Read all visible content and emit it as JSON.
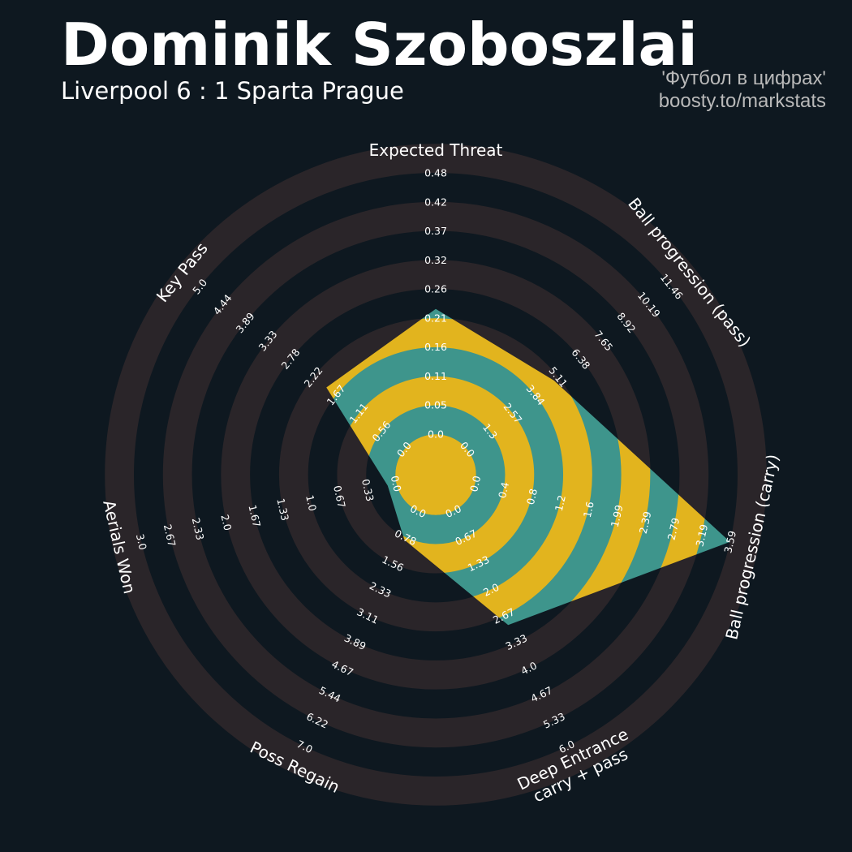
{
  "header": {
    "title": "Dominik Szoboszlai",
    "subtitle": "Liverpool 6 : 1 Sparta Prague",
    "credit_line1": "'Футбол в цифрах'",
    "credit_line2": "boosty.to/markstats"
  },
  "colors": {
    "background": "#0e1820",
    "ring_band": "#2a2529",
    "shape_yellow": "#e2b41e",
    "shape_teal": "#3e958c"
  },
  "chart_data": {
    "type": "radar",
    "params": [
      {
        "label": "Expected Threat",
        "label_lines": [
          "Expected Threat"
        ],
        "min": 0.0,
        "max": 0.48,
        "ticks": [
          "0.0",
          "0.05",
          "0.11",
          "0.16",
          "0.21",
          "0.26",
          "0.32",
          "0.37",
          "0.42",
          "0.48"
        ],
        "value": 0.23
      },
      {
        "label": "Ball progression (pass)",
        "label_lines": [
          "Ball progression (pass)"
        ],
        "min": 0.0,
        "max": 11.46,
        "ticks": [
          "0.0",
          "1.3",
          "2.57",
          "3.84",
          "5.11",
          "6.38",
          "7.65",
          "8.92",
          "10.19",
          "11.46"
        ],
        "value": 4.85
      },
      {
        "label": "Ball progression (carry)",
        "label_lines": [
          "Ball progression (carry)"
        ],
        "min": 0.0,
        "max": 3.59,
        "ticks": [
          "0.0",
          "0.4",
          "0.8",
          "1.2",
          "1.6",
          "1.99",
          "2.39",
          "2.79",
          "3.19",
          "3.59"
        ],
        "value": 3.59
      },
      {
        "label": "Deep Entrance carry + pass",
        "label_lines": [
          "Deep Entrance",
          "carry + pass"
        ],
        "min": 0.0,
        "max": 6.0,
        "ticks": [
          "0.0",
          "0.67",
          "1.33",
          "2.0",
          "2.67",
          "3.33",
          "4.0",
          "4.67",
          "5.33",
          "6.0"
        ],
        "value": 2.9
      },
      {
        "label": "Poss Regain",
        "label_lines": [
          "Poss Regain"
        ],
        "min": 0.0,
        "max": 7.0,
        "ticks": [
          "0.0",
          "0.78",
          "1.56",
          "2.33",
          "3.11",
          "3.89",
          "4.67",
          "5.44",
          "6.22",
          "7.0"
        ],
        "value": 0.85
      },
      {
        "label": "Aerials Won",
        "label_lines": [
          "Aerials Won"
        ],
        "min": 0.0,
        "max": 3.0,
        "ticks": [
          "0.0",
          "0.33",
          "0.67",
          "1.0",
          "1.33",
          "1.67",
          "2.0",
          "2.33",
          "2.67",
          "3.0"
        ],
        "value": 0.1
      },
      {
        "label": "Key Pass",
        "label_lines": [
          "Key Pass"
        ],
        "min": 0.0,
        "max": 5.0,
        "ticks": [
          "0.0",
          "0.56",
          "1.11",
          "1.67",
          "2.22",
          "2.78",
          "3.33",
          "3.89",
          "4.44",
          "5.0"
        ],
        "value": 1.9
      }
    ]
  }
}
